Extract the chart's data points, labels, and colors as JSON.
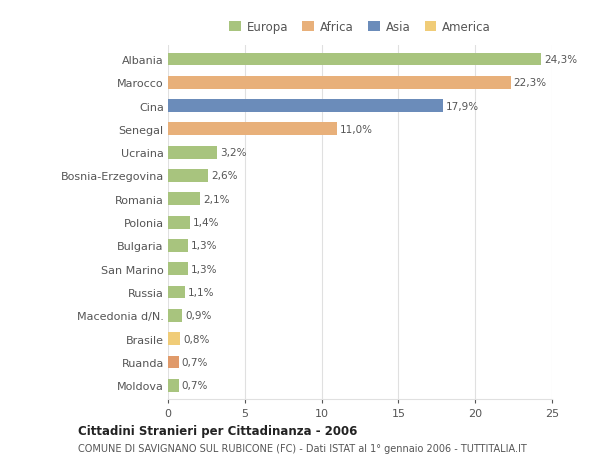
{
  "categories": [
    "Albania",
    "Marocco",
    "Cina",
    "Senegal",
    "Ucraina",
    "Bosnia-Erzegovina",
    "Romania",
    "Polonia",
    "Bulgaria",
    "San Marino",
    "Russia",
    "Macedonia d/N.",
    "Brasile",
    "Ruanda",
    "Moldova"
  ],
  "values": [
    24.3,
    22.3,
    17.9,
    11.0,
    3.2,
    2.6,
    2.1,
    1.4,
    1.3,
    1.3,
    1.1,
    0.9,
    0.8,
    0.7,
    0.7
  ],
  "labels": [
    "24,3%",
    "22,3%",
    "17,9%",
    "11,0%",
    "3,2%",
    "2,6%",
    "2,1%",
    "1,4%",
    "1,3%",
    "1,3%",
    "1,1%",
    "0,9%",
    "0,8%",
    "0,7%",
    "0,7%"
  ],
  "colors": [
    "#a8c47e",
    "#e8b07a",
    "#6b8cba",
    "#e8b07a",
    "#a8c47e",
    "#a8c47e",
    "#a8c47e",
    "#a8c47e",
    "#a8c47e",
    "#a8c47e",
    "#a8c47e",
    "#a8c47e",
    "#f0cc78",
    "#e09a6a",
    "#a8c47e"
  ],
  "legend_labels": [
    "Europa",
    "Africa",
    "Asia",
    "America"
  ],
  "legend_colors": [
    "#a8c47e",
    "#e8b07a",
    "#6b8cba",
    "#f0cc78"
  ],
  "title": "Cittadini Stranieri per Cittadinanza - 2006",
  "subtitle": "COMUNE DI SAVIGNANO SUL RUBICONE (FC) - Dati ISTAT al 1° gennaio 2006 - TUTTITALIA.IT",
  "xlim": [
    0,
    25
  ],
  "xticks": [
    0,
    5,
    10,
    15,
    20,
    25
  ],
  "bg_color": "#ffffff",
  "grid_color": "#e0e0e0",
  "bar_height": 0.55
}
